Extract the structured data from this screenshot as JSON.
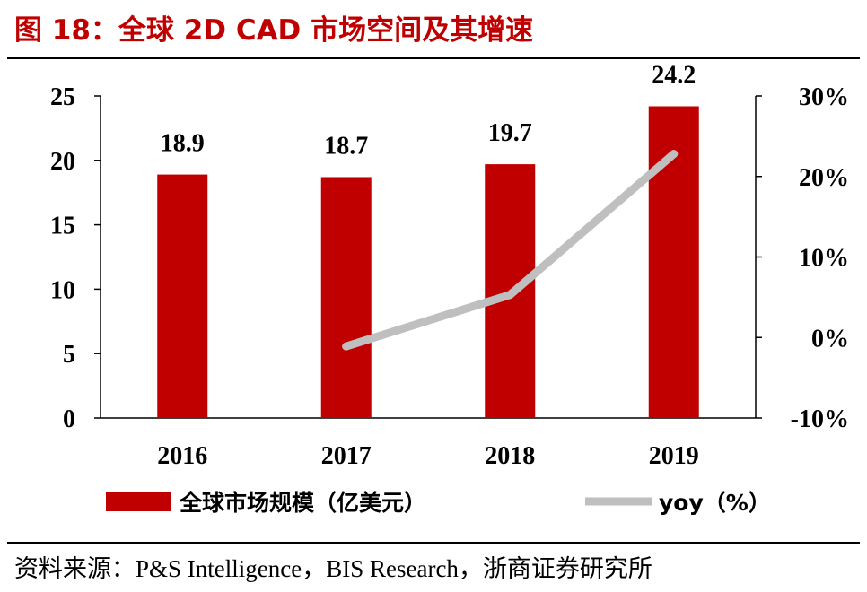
{
  "title": "图 18：全球 2D CAD 市场空间及其增速",
  "source": "资料来源：P&S Intelligence，BIS Research，浙商证券研究所",
  "colors": {
    "bar": "#c00000",
    "line": "#bfbfbf",
    "title": "#c00000"
  },
  "chart_data": {
    "type": "bar",
    "categories": [
      "2016",
      "2017",
      "2018",
      "2019"
    ],
    "series": [
      {
        "name": "全球市场规模（亿美元）",
        "type": "bar",
        "axis": "left",
        "values": [
          18.9,
          18.7,
          19.7,
          24.2
        ],
        "labels": [
          "18.9",
          "18.7",
          "19.7",
          "24.2"
        ]
      },
      {
        "name": "yoy（%）",
        "type": "line",
        "axis": "right",
        "values": [
          null,
          -1.1,
          5.3,
          22.8
        ]
      }
    ],
    "left_axis": {
      "min": 0,
      "max": 25,
      "ticks": [
        0,
        5,
        10,
        15,
        20,
        25
      ],
      "tick_labels": [
        "0",
        "5",
        "10",
        "15",
        "20",
        "25"
      ]
    },
    "right_axis": {
      "min": -10,
      "max": 30,
      "ticks": [
        -10,
        0,
        10,
        20,
        30
      ],
      "tick_labels": [
        "-10%",
        "0%",
        "10%",
        "20%",
        "30%"
      ]
    },
    "legend": [
      "全球市场规模（亿美元）",
      "yoy（%）"
    ],
    "legend_position": "bottom",
    "grid": false
  }
}
